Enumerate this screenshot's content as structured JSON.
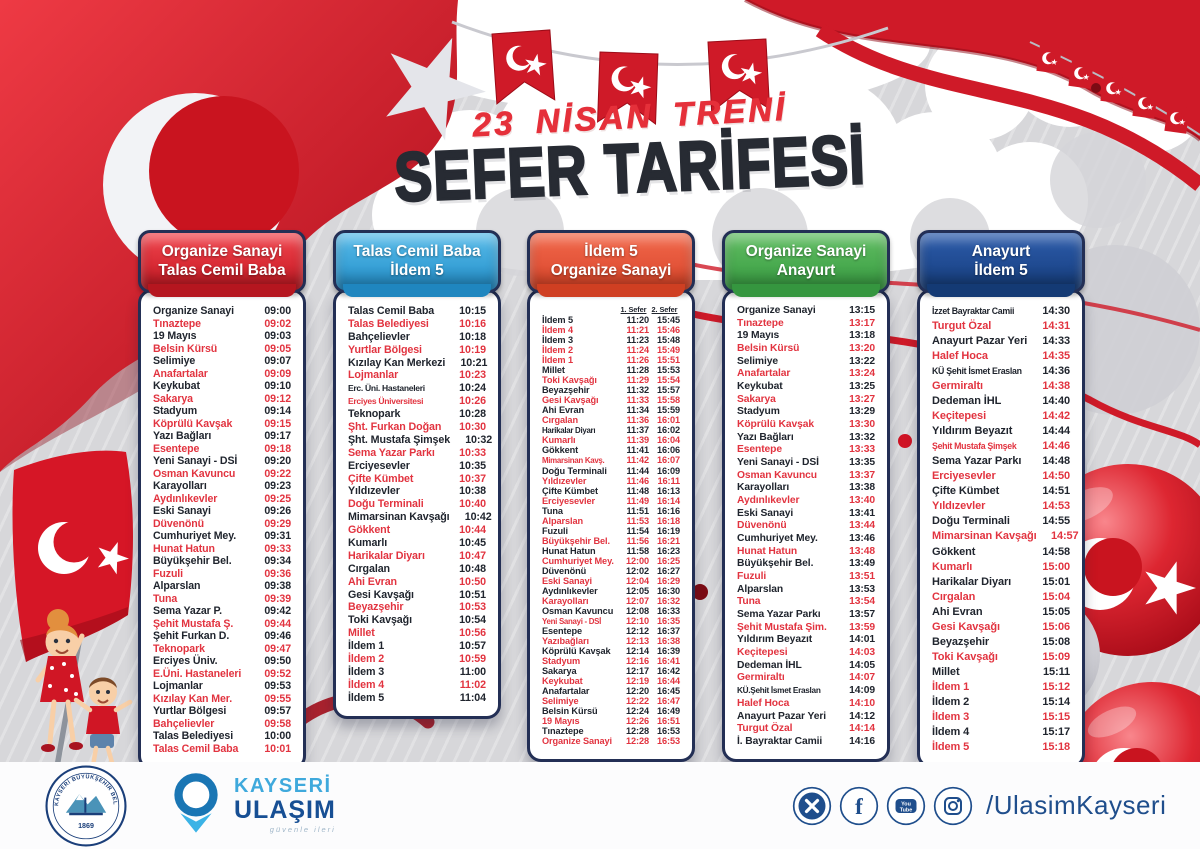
{
  "poster": {
    "subtitle": "23 NİSAN TRENİ",
    "title": "SEFER TARİFESİ"
  },
  "colors": {
    "accent_red": "#e23440",
    "text_dark": "#20252e",
    "border_navy": "#232f55",
    "flag_red": "#cf1a28",
    "footer_navy": "#1f4e8c",
    "brand_light_blue": "#3fa9dc",
    "brand_dark_blue": "#174f94"
  },
  "cards": [
    {
      "header": [
        "Organize Sanayi",
        "Talas Cemil Baba"
      ],
      "color_light": "#f0474f",
      "color": "#d92b35",
      "color_dark": "#b5161f",
      "rows": [
        [
          "Organize Sanayi",
          "09:00",
          0
        ],
        [
          "Tınaztepe",
          "09:02",
          1
        ],
        [
          "19 Mayıs",
          "09:03",
          0
        ],
        [
          "Belsin Kürsü",
          "09:05",
          1
        ],
        [
          "Selimiye",
          "09:07",
          0
        ],
        [
          "Anafartalar",
          "09:09",
          1
        ],
        [
          "Keykubat",
          "09:10",
          0
        ],
        [
          "Sakarya",
          "09:12",
          1
        ],
        [
          "Stadyum",
          "09:14",
          0
        ],
        [
          "Köprülü Kavşak",
          "09:15",
          1
        ],
        [
          "Yazı Bağları",
          "09:17",
          0
        ],
        [
          "Esentepe",
          "09:18",
          1
        ],
        [
          "Yeni Sanayi - DSİ",
          "09:20",
          0
        ],
        [
          "Osman Kavuncu",
          "09:22",
          1
        ],
        [
          "Karayolları",
          "09:23",
          0
        ],
        [
          "Aydınlıkevler",
          "09:25",
          1
        ],
        [
          "Eski Sanayi",
          "09:26",
          0
        ],
        [
          "Düvenönü",
          "09:29",
          1
        ],
        [
          "Cumhuriyet Mey.",
          "09:31",
          0
        ],
        [
          "Hunat Hatun",
          "09:33",
          1
        ],
        [
          "Büyükşehir Bel.",
          "09:34",
          0
        ],
        [
          "Fuzuli",
          "09:36",
          1
        ],
        [
          "Alparslan",
          "09:38",
          0
        ],
        [
          "Tuna",
          "09:39",
          1
        ],
        [
          "Sema Yazar P.",
          "09:42",
          0
        ],
        [
          "Şehit Mustafa Ş.",
          "09:44",
          1
        ],
        [
          "Şehit Furkan D.",
          "09:46",
          0
        ],
        [
          "Teknopark",
          "09:47",
          1
        ],
        [
          "Erciyes Üniv.",
          "09:50",
          0
        ],
        [
          "E.Üni. Hastaneleri",
          "09:52",
          1
        ],
        [
          "Lojmanlar",
          "09:53",
          0
        ],
        [
          "Kızılay Kan Mer.",
          "09:55",
          1
        ],
        [
          "Yurtlar Bölgesi",
          "09:57",
          0
        ],
        [
          "Bahçelievler",
          "09:58",
          1
        ],
        [
          "Talas Belediyesi",
          "10:00",
          0
        ],
        [
          "Talas Cemil Baba",
          "10:01",
          1
        ]
      ]
    },
    {
      "header": [
        "Talas Cemil Baba",
        "İldem 5"
      ],
      "color_light": "#59bbe9",
      "color": "#3aa3d8",
      "color_dark": "#1f86bf",
      "rows": [
        [
          "Talas Cemil Baba",
          "10:15",
          0
        ],
        [
          "Talas Belediyesi",
          "10:16",
          1
        ],
        [
          "Bahçelievler",
          "10:18",
          0
        ],
        [
          "Yurtlar Bölgesi",
          "10:19",
          1
        ],
        [
          "Kızılay Kan Merkezi",
          "10:21",
          0
        ],
        [
          "Lojmanlar",
          "10:23",
          1
        ],
        [
          "Erc. Üni. Hastaneleri",
          "10:24",
          0
        ],
        [
          "Erciyes Üniversitesi",
          "10:26",
          1
        ],
        [
          "Teknopark",
          "10:28",
          0
        ],
        [
          "Şht. Furkan Doğan",
          "10:30",
          1
        ],
        [
          "Şht. Mustafa Şimşek",
          "10:32",
          0
        ],
        [
          "Sema Yazar Parkı",
          "10:33",
          1
        ],
        [
          "Erciyesevler",
          "10:35",
          0
        ],
        [
          "Çifte Kümbet",
          "10:37",
          1
        ],
        [
          "Yıldızevler",
          "10:38",
          0
        ],
        [
          "Doğu Terminali",
          "10:40",
          1
        ],
        [
          "Mimarsinan Kavşağı",
          "10:42",
          0
        ],
        [
          "Gökkent",
          "10:44",
          1
        ],
        [
          "Kumarlı",
          "10:45",
          0
        ],
        [
          "Harikalar Diyarı",
          "10:47",
          1
        ],
        [
          "Cırgalan",
          "10:48",
          0
        ],
        [
          "Ahi Evran",
          "10:50",
          1
        ],
        [
          "Gesi Kavşağı",
          "10:51",
          0
        ],
        [
          "Beyazşehir",
          "10:53",
          1
        ],
        [
          "Toki Kavşağı",
          "10:54",
          0
        ],
        [
          "Millet",
          "10:56",
          1
        ],
        [
          "İldem 1",
          "10:57",
          0
        ],
        [
          "İldem 2",
          "10:59",
          1
        ],
        [
          "İldem 3",
          "11:00",
          0
        ],
        [
          "İldem 4",
          "11:02",
          1
        ],
        [
          "İldem 5",
          "11:04",
          0
        ]
      ]
    },
    {
      "header": [
        "İldem 5",
        "Organize Sanayi"
      ],
      "color_light": "#f2684a",
      "color": "#e4553a",
      "color_dark": "#cf3f22",
      "sefer": [
        "1. Sefer",
        "2. Sefer"
      ],
      "rows": [
        [
          "İldem 5",
          "11:20",
          "15:45",
          0
        ],
        [
          "İldem 4",
          "11:21",
          "15:46",
          1
        ],
        [
          "İldem 3",
          "11:23",
          "15:48",
          0
        ],
        [
          "İldem 2",
          "11:24",
          "15:49",
          1
        ],
        [
          "İldem 1",
          "11:26",
          "15:51",
          1
        ],
        [
          "Millet",
          "11:28",
          "15:53",
          0
        ],
        [
          "Toki Kavşağı",
          "11:29",
          "15:54",
          1
        ],
        [
          "Beyazşehir",
          "11:32",
          "15:57",
          0
        ],
        [
          "Gesi Kavşağı",
          "11:33",
          "15:58",
          1
        ],
        [
          "Ahi Evran",
          "11:34",
          "15:59",
          0
        ],
        [
          "Cırgalan",
          "11:36",
          "16:01",
          1
        ],
        [
          "Harikalar Diyarı",
          "11:37",
          "16:02",
          0
        ],
        [
          "Kumarlı",
          "11:39",
          "16:04",
          1
        ],
        [
          "Gökkent",
          "11:41",
          "16:06",
          0
        ],
        [
          "Mimarsinan Kavş.",
          "11:42",
          "16:07",
          1
        ],
        [
          "Doğu Terminali",
          "11:44",
          "16:09",
          0
        ],
        [
          "Yıldızevler",
          "11:46",
          "16:11",
          1
        ],
        [
          "Çifte Kümbet",
          "11:48",
          "16:13",
          0
        ],
        [
          "Erciyesevler",
          "11:49",
          "16:14",
          1
        ],
        [
          "Tuna",
          "11:51",
          "16:16",
          0
        ],
        [
          "Alparslan",
          "11:53",
          "16:18",
          1
        ],
        [
          "Fuzuli",
          "11:54",
          "16:19",
          0
        ],
        [
          "Büyükşehir Bel.",
          "11:56",
          "16:21",
          1
        ],
        [
          "Hunat Hatun",
          "11:58",
          "16:23",
          0
        ],
        [
          "Cumhuriyet Mey.",
          "12:00",
          "16:25",
          1
        ],
        [
          "Düvenönü",
          "12:02",
          "16:27",
          0
        ],
        [
          "Eski Sanayi",
          "12:04",
          "16:29",
          1
        ],
        [
          "Aydınlıkevler",
          "12:05",
          "16:30",
          0
        ],
        [
          "Karayolları",
          "12:07",
          "16:32",
          1
        ],
        [
          "Osman Kavuncu",
          "12:08",
          "16:33",
          0
        ],
        [
          "Yeni Sanayi - DSİ",
          "12:10",
          "16:35",
          1
        ],
        [
          "Esentepe",
          "12:12",
          "16:37",
          0
        ],
        [
          "Yazıbağları",
          "12:13",
          "16:38",
          1
        ],
        [
          "Köprülü Kavşak",
          "12:14",
          "16:39",
          0
        ],
        [
          "Stadyum",
          "12:16",
          "16:41",
          1
        ],
        [
          "Sakarya",
          "12:17",
          "16:42",
          0
        ],
        [
          "Keykubat",
          "12:19",
          "16:44",
          1
        ],
        [
          "Anafartalar",
          "12:20",
          "16:45",
          0
        ],
        [
          "Selimiye",
          "12:22",
          "16:47",
          1
        ],
        [
          "Belsin Kürsü",
          "12:24",
          "16:49",
          0
        ],
        [
          "19 Mayıs",
          "12:26",
          "16:51",
          1
        ],
        [
          "Tınaztepe",
          "12:28",
          "16:53",
          0
        ],
        [
          "Organize Sanayi",
          "12:28",
          "16:53",
          1
        ]
      ]
    },
    {
      "header": [
        "Organize Sanayi",
        "Anayurt"
      ],
      "color_light": "#62bd63",
      "color": "#4aab50",
      "color_dark": "#35963f",
      "rows": [
        [
          "Organize Sanayi",
          "13:15",
          0
        ],
        [
          "Tınaztepe",
          "13:17",
          1
        ],
        [
          "19 Mayıs",
          "13:18",
          0
        ],
        [
          "Belsin Kürsü",
          "13:20",
          1
        ],
        [
          "Selimiye",
          "13:22",
          0
        ],
        [
          "Anafartalar",
          "13:24",
          1
        ],
        [
          "Keykubat",
          "13:25",
          0
        ],
        [
          "Sakarya",
          "13:27",
          1
        ],
        [
          "Stadyum",
          "13:29",
          0
        ],
        [
          "Köprülü Kavşak",
          "13:30",
          1
        ],
        [
          "Yazı Bağları",
          "13:32",
          0
        ],
        [
          "Esentepe",
          "13:33",
          1
        ],
        [
          "Yeni Sanayi - DSİ",
          "13:35",
          0
        ],
        [
          "Osman Kavuncu",
          "13:37",
          1
        ],
        [
          "Karayolları",
          "13:38",
          0
        ],
        [
          "Aydınlıkevler",
          "13:40",
          1
        ],
        [
          "Eski Sanayi",
          "13:41",
          0
        ],
        [
          "Düvenönü",
          "13:44",
          1
        ],
        [
          "Cumhuriyet Mey.",
          "13:46",
          0
        ],
        [
          "Hunat Hatun",
          "13:48",
          1
        ],
        [
          "Büyükşehir Bel.",
          "13:49",
          0
        ],
        [
          "Fuzuli",
          "13:51",
          1
        ],
        [
          "Alparslan",
          "13:53",
          0
        ],
        [
          "Tuna",
          "13:54",
          1
        ],
        [
          "Sema Yazar Parkı",
          "13:57",
          0
        ],
        [
          "Şehit Mustafa Şim.",
          "13:59",
          1
        ],
        [
          "Yıldırım Beyazıt",
          "14:01",
          0
        ],
        [
          "Keçitepesi",
          "14:03",
          1
        ],
        [
          "Dedeman İHL",
          "14:05",
          0
        ],
        [
          "Germiraltı",
          "14:07",
          1
        ],
        [
          "KÜ.Şehit İsmet Eraslan",
          "14:09",
          0
        ],
        [
          "Halef Hoca",
          "14:10",
          1
        ],
        [
          "Anayurt Pazar Yeri",
          "14:12",
          0
        ],
        [
          "Turgut Özal",
          "14:14",
          1
        ],
        [
          "İ. Bayraktar Camii",
          "14:16",
          0
        ]
      ]
    },
    {
      "header": [
        "Anayurt",
        "İldem 5"
      ],
      "color_light": "#2d5cab",
      "color": "#204b92",
      "color_dark": "#143a74",
      "rows": [
        [
          "İzzet Bayraktar Camii",
          "14:30",
          0
        ],
        [
          "Turgut Özal",
          "14:31",
          1
        ],
        [
          "Anayurt Pazar Yeri",
          "14:33",
          0
        ],
        [
          "Halef Hoca",
          "14:35",
          1
        ],
        [
          "KÜ Şehit İsmet Eraslan",
          "14:36",
          0
        ],
        [
          "Germiraltı",
          "14:38",
          1
        ],
        [
          "Dedeman İHL",
          "14:40",
          0
        ],
        [
          "Keçitepesi",
          "14:42",
          1
        ],
        [
          "Yıldırım Beyazıt",
          "14:44",
          0
        ],
        [
          "Şehit Mustafa Şimşek",
          "14:46",
          1
        ],
        [
          "Sema Yazar Parkı",
          "14:48",
          0
        ],
        [
          "Erciyesevler",
          "14:50",
          1
        ],
        [
          "Çifte Kümbet",
          "14:51",
          0
        ],
        [
          "Yıldızevler",
          "14:53",
          1
        ],
        [
          "Doğu Terminali",
          "14:55",
          0
        ],
        [
          "Mimarsinan Kavşağı",
          "14:57",
          1
        ],
        [
          "Gökkent",
          "14:58",
          0
        ],
        [
          "Kumarlı",
          "15:00",
          1
        ],
        [
          "Harikalar Diyarı",
          "15:01",
          0
        ],
        [
          "Cırgalan",
          "15:04",
          1
        ],
        [
          "Ahi Evran",
          "15:05",
          0
        ],
        [
          "Gesi Kavşağı",
          "15:06",
          1
        ],
        [
          "Beyazşehir",
          "15:08",
          0
        ],
        [
          "Toki Kavşağı",
          "15:09",
          1
        ],
        [
          "Millet",
          "15:11",
          0
        ],
        [
          "İldem 1",
          "15:12",
          1
        ],
        [
          "İldem 2",
          "15:14",
          0
        ],
        [
          "İldem 3",
          "15:15",
          1
        ],
        [
          "İldem 4",
          "15:17",
          0
        ],
        [
          "İldem 5",
          "15:18",
          1
        ]
      ]
    }
  ],
  "footer": {
    "seal_text": "KAYSERİ BÜYÜKŞEHİR BELEDİYESİ",
    "seal_year": "1869",
    "brand_line1": "KAYSERİ",
    "brand_line2": "ULAŞIM",
    "brand_tagline": "güvenle ileri",
    "social_handle": "/UlasimKayseri",
    "social_icons": [
      "x-icon",
      "facebook-icon",
      "youtube-icon",
      "instagram-icon"
    ]
  }
}
